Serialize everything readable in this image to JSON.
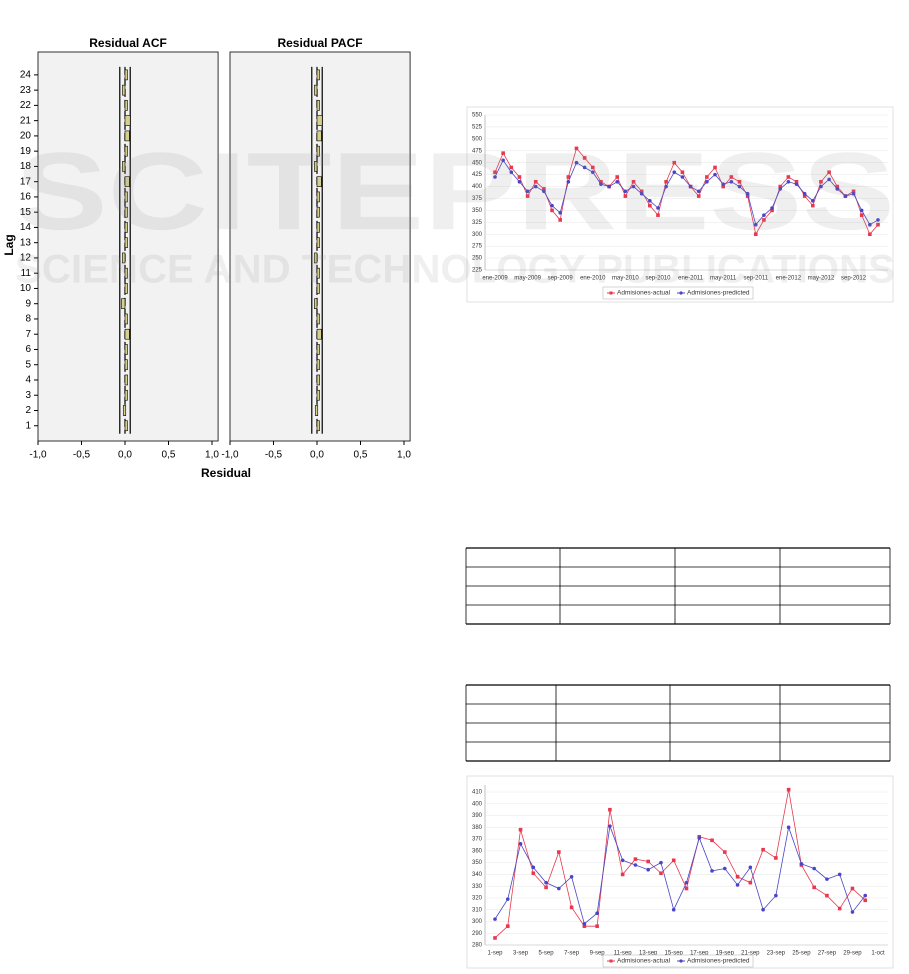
{
  "watermark": {
    "logo": "SCITEPRESS",
    "tagline": "SCIENCE AND TECHNOLOGY PUBLICATIONS"
  },
  "chart_data": [
    {
      "type": "acf",
      "ylabel": "Lag",
      "xlabel": "Residual",
      "categories": [
        1,
        2,
        3,
        4,
        5,
        6,
        7,
        8,
        9,
        10,
        11,
        12,
        13,
        14,
        15,
        16,
        17,
        18,
        19,
        20,
        21,
        22,
        23,
        24
      ],
      "ylim": [
        0,
        25.5
      ],
      "xlim": [
        -1,
        1.07
      ],
      "xticks": [
        {
          "value": -1,
          "label": "-1,0"
        },
        {
          "value": -0.5,
          "label": "-0,5"
        },
        {
          "value": 0,
          "label": "0,0"
        },
        {
          "value": 0.5,
          "label": "0,5"
        },
        {
          "value": 1,
          "label": "1,0"
        }
      ],
      "bar_color": "#d6d08f",
      "panels": [
        {
          "title": "Residual ACF",
          "upper": 0.06,
          "lower": -0.06,
          "values": [
            0.02,
            -0.02,
            0.01,
            0.03,
            0.01,
            0.01,
            0.05,
            0.01,
            -0.04,
            0.01,
            0.01,
            -0.03,
            0.01,
            0.02,
            0.01,
            0.01,
            0.05,
            -0.03,
            0.01,
            0.05,
            0.06,
            0.01,
            -0.03,
            0.0
          ]
        },
        {
          "title": "Residual PACF",
          "upper": 0.06,
          "lower": -0.06,
          "values": [
            0.02,
            -0.02,
            0.01,
            0.03,
            0.01,
            0.01,
            0.05,
            0.01,
            -0.03,
            0.01,
            0.01,
            -0.03,
            0.01,
            0.02,
            0.01,
            0.01,
            0.05,
            -0.03,
            0.01,
            0.05,
            0.06,
            0.01,
            -0.03,
            0.0
          ]
        }
      ]
    },
    {
      "type": "line",
      "categories": [
        "ene-2009",
        null,
        null,
        null,
        "may-2009",
        null,
        null,
        null,
        "sep-2009",
        null,
        null,
        null,
        "ene-2010",
        null,
        null,
        null,
        "may-2010",
        null,
        null,
        null,
        "sep-2010",
        null,
        null,
        null,
        "ene-2011",
        null,
        null,
        null,
        "may-2011",
        null,
        null,
        null,
        "sep-2011",
        null,
        null,
        null,
        "ene-2012",
        null,
        null,
        null,
        "may-2012",
        null,
        null,
        null,
        "sep-2012",
        null,
        null,
        null
      ],
      "ylim": [
        225,
        550
      ],
      "yticks": [
        225,
        250,
        275,
        300,
        325,
        350,
        375,
        400,
        425,
        450,
        475,
        500,
        525,
        550
      ],
      "series": [
        {
          "name": "Admisiones-actual",
          "color": "#e8384f",
          "marker": "square",
          "values": [
            430,
            470,
            440,
            420,
            380,
            410,
            395,
            350,
            330,
            420,
            480,
            460,
            440,
            410,
            400,
            420,
            380,
            410,
            390,
            360,
            340,
            410,
            450,
            430,
            400,
            380,
            420,
            440,
            400,
            420,
            410,
            380,
            300,
            330,
            350,
            400,
            420,
            410,
            380,
            360,
            410,
            430,
            400,
            380,
            390,
            340,
            300,
            320
          ]
        },
        {
          "name": "Admisiones-predicted",
          "color": "#4a45c8",
          "marker": "circle",
          "values": [
            420,
            455,
            430,
            410,
            390,
            400,
            390,
            360,
            345,
            410,
            450,
            440,
            430,
            405,
            400,
            410,
            390,
            400,
            385,
            370,
            355,
            400,
            430,
            420,
            400,
            390,
            410,
            425,
            405,
            410,
            400,
            385,
            320,
            340,
            355,
            395,
            410,
            405,
            385,
            370,
            400,
            415,
            395,
            380,
            385,
            350,
            320,
            330
          ]
        }
      ]
    },
    {
      "type": "line",
      "categories": [
        "1-sep",
        null,
        "3-sep",
        null,
        "5-sep",
        null,
        "7-sep",
        null,
        "9-sep",
        null,
        "11-sep",
        null,
        "13-sep",
        null,
        "15-sep",
        null,
        "17-sep",
        null,
        "19-sep",
        null,
        "21-sep",
        null,
        "23-sep",
        null,
        "25-sep",
        null,
        "27-sep",
        null,
        "29-sep",
        null,
        "1-oct"
      ],
      "ylim": [
        280,
        416
      ],
      "yticks": [
        280,
        290,
        300,
        310,
        320,
        330,
        340,
        350,
        360,
        370,
        380,
        390,
        400,
        410
      ],
      "series": [
        {
          "name": "Admisiones-actual",
          "color": "#e8384f",
          "marker": "square",
          "values": [
            286,
            296,
            378,
            341,
            329,
            359,
            312,
            296,
            296,
            395,
            340,
            353,
            351,
            341,
            352,
            328,
            372,
            369,
            359,
            338,
            333,
            361,
            354,
            412,
            348,
            329,
            322,
            311,
            328,
            318,
            null
          ]
        },
        {
          "name": "Admisiones-predicted",
          "color": "#4a45c8",
          "marker": "circle",
          "values": [
            302,
            319,
            366,
            346,
            333,
            328,
            338,
            298,
            307,
            381,
            352,
            348,
            344,
            350,
            310,
            333,
            371,
            343,
            345,
            331,
            346,
            310,
            322,
            380,
            349,
            345,
            336,
            340,
            308,
            322,
            null
          ]
        }
      ]
    }
  ]
}
